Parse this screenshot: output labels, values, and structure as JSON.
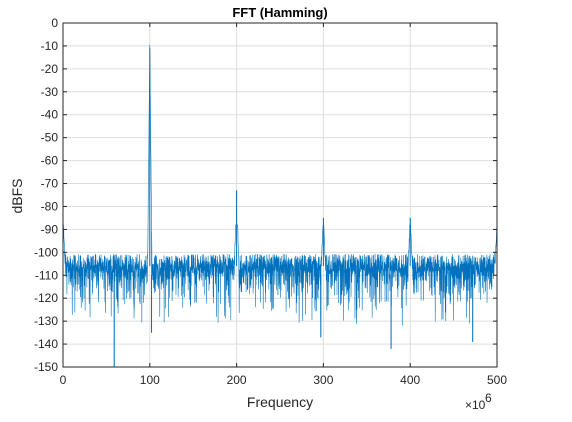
{
  "chart_data": {
    "type": "line",
    "title": "FFT (Hamming)",
    "xlabel": "Frequency",
    "ylabel": "dBFS",
    "x_multiplier_base": "×10",
    "x_multiplier_exponent": "6",
    "xlim": [
      0,
      500
    ],
    "ylim": [
      -150,
      0
    ],
    "xticks": [
      "0",
      "100",
      "200",
      "300",
      "400",
      "500"
    ],
    "yticks": [
      "0",
      "-10",
      "-20",
      "-30",
      "-40",
      "-50",
      "-60",
      "-70",
      "-80",
      "-90",
      "-100",
      "-110",
      "-120",
      "-130",
      "-140",
      "-150"
    ],
    "grid": true,
    "line_color": "#0072BD",
    "noise_floor_db": -106,
    "spurs": [
      {
        "x": 0,
        "y": -84
      },
      {
        "x": 100,
        "y": -11
      },
      {
        "x": 200,
        "y": -73
      },
      {
        "x": 300,
        "y": -85
      },
      {
        "x": 400,
        "y": -85
      },
      {
        "x": 500,
        "y": -89
      }
    ],
    "minima": [
      {
        "x": 59,
        "y": -150
      },
      {
        "x": 102,
        "y": -135
      },
      {
        "x": 297,
        "y": -137
      },
      {
        "x": 378,
        "y": -142
      },
      {
        "x": 472,
        "y": -139
      }
    ]
  }
}
